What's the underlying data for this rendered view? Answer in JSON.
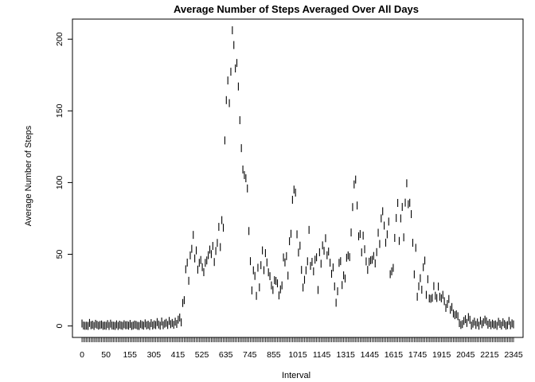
{
  "chart_data": {
    "type": "scatter",
    "title": "Average Number of Steps Averaged Over All Days",
    "xlabel": "Interval",
    "ylabel": "Average Number of Steps",
    "y_ticks": [
      0,
      50,
      100,
      150,
      200
    ],
    "ylim": [
      -8,
      214
    ],
    "grid": false,
    "legend": "none",
    "point_style": "vertical-bar",
    "color": "#000000",
    "x_tick_labels": [
      "0",
      "50",
      "155",
      "305",
      "415",
      "525",
      "635",
      "745",
      "855",
      "1015",
      "1145",
      "1315",
      "1445",
      "1615",
      "1745",
      "1915",
      "2045",
      "2215",
      "2345"
    ],
    "x_interval_labels_all": [],
    "points": [
      [
        0,
        1.7
      ],
      [
        1,
        0.3
      ],
      [
        2,
        0.1
      ],
      [
        3,
        0.2
      ],
      [
        4,
        0.0
      ],
      [
        5,
        2.1
      ],
      [
        6,
        0.5
      ],
      [
        7,
        0.9
      ],
      [
        8,
        0.0
      ],
      [
        9,
        1.5
      ],
      [
        10,
        0.8
      ],
      [
        11,
        0.2
      ],
      [
        12,
        0.7
      ],
      [
        13,
        1.0
      ],
      [
        14,
        0.1
      ],
      [
        15,
        0.3
      ],
      [
        16,
        0.1
      ],
      [
        17,
        1.3
      ],
      [
        18,
        0.0
      ],
      [
        19,
        1.6
      ],
      [
        20,
        0.3
      ],
      [
        21,
        0.2
      ],
      [
        22,
        0.0
      ],
      [
        23,
        1.1
      ],
      [
        24,
        0.0
      ],
      [
        25,
        0.9
      ],
      [
        26,
        0.4
      ],
      [
        27,
        0.1
      ],
      [
        28,
        1.2
      ],
      [
        29,
        0.5
      ],
      [
        30,
        0.6
      ],
      [
        31,
        0.2
      ],
      [
        32,
        1.4
      ],
      [
        33,
        0.0
      ],
      [
        34,
        0.3
      ],
      [
        35,
        1.0
      ],
      [
        36,
        0.7
      ],
      [
        37,
        0.1
      ],
      [
        38,
        0.0
      ],
      [
        39,
        1.3
      ],
      [
        40,
        0.6
      ],
      [
        41,
        0.2
      ],
      [
        42,
        1.8
      ],
      [
        43,
        0.4
      ],
      [
        44,
        0.9
      ],
      [
        45,
        0.0
      ],
      [
        46,
        2.0
      ],
      [
        47,
        0.3
      ],
      [
        48,
        1.1
      ],
      [
        49,
        0.6
      ],
      [
        50,
        2.7
      ],
      [
        51,
        1.0
      ],
      [
        52,
        0.2
      ],
      [
        53,
        3.1
      ],
      [
        54,
        0.5
      ],
      [
        55,
        1.6
      ],
      [
        56,
        2.2
      ],
      [
        57,
        0.7
      ],
      [
        58,
        3.5
      ],
      [
        59,
        1.2
      ],
      [
        60,
        2.1
      ],
      [
        61,
        0.8
      ],
      [
        62,
        3.0
      ],
      [
        63,
        1.4
      ],
      [
        64,
        4.4
      ],
      [
        65,
        5.9
      ],
      [
        66,
        2.5
      ],
      [
        67,
        16.0
      ],
      [
        68,
        18.0
      ],
      [
        69,
        39.5
      ],
      [
        70,
        44.2
      ],
      [
        71,
        31.5
      ],
      [
        72,
        49.2
      ],
      [
        73,
        53.8
      ],
      [
        74,
        63.5
      ],
      [
        75,
        47.1
      ],
      [
        76,
        52.7
      ],
      [
        77,
        39.3
      ],
      [
        78,
        44.0
      ],
      [
        79,
        46.0
      ],
      [
        80,
        41.0
      ],
      [
        81,
        37.5
      ],
      [
        82,
        44.0
      ],
      [
        83,
        45.7
      ],
      [
        84,
        49.4
      ],
      [
        85,
        53.3
      ],
      [
        86,
        50.1
      ],
      [
        87,
        55.8
      ],
      [
        88,
        44.6
      ],
      [
        89,
        52.3
      ],
      [
        90,
        57.9
      ],
      [
        91,
        69.1
      ],
      [
        92,
        55.0
      ],
      [
        93,
        73.8
      ],
      [
        94,
        68.5
      ],
      [
        95,
        129.4
      ],
      [
        96,
        157.5
      ],
      [
        97,
        171.2
      ],
      [
        98,
        155.4
      ],
      [
        99,
        177.3
      ],
      [
        100,
        206.2
      ],
      [
        101,
        195.9
      ],
      [
        102,
        179.6
      ],
      [
        103,
        183.4
      ],
      [
        104,
        167.0
      ],
      [
        105,
        143.5
      ],
      [
        106,
        124.0
      ],
      [
        107,
        109.1
      ],
      [
        108,
        105.2
      ],
      [
        109,
        103.0
      ],
      [
        110,
        95.9
      ],
      [
        111,
        66.2
      ],
      [
        112,
        45.2
      ],
      [
        113,
        24.8
      ],
      [
        114,
        38.8
      ],
      [
        115,
        34.9
      ],
      [
        116,
        21.0
      ],
      [
        117,
        40.6
      ],
      [
        118,
        26.9
      ],
      [
        119,
        42.4
      ],
      [
        120,
        52.7
      ],
      [
        121,
        38.9
      ],
      [
        122,
        50.8
      ],
      [
        123,
        44.3
      ],
      [
        124,
        37.4
      ],
      [
        125,
        34.7
      ],
      [
        126,
        28.3
      ],
      [
        127,
        25.1
      ],
      [
        128,
        31.9
      ],
      [
        129,
        31.4
      ],
      [
        130,
        29.7
      ],
      [
        131,
        21.3
      ],
      [
        132,
        25.5
      ],
      [
        133,
        28.3
      ],
      [
        134,
        47.8
      ],
      [
        135,
        44.3
      ],
      [
        136,
        48.7
      ],
      [
        137,
        35.1
      ],
      [
        138,
        59.1
      ],
      [
        139,
        64.3
      ],
      [
        140,
        88.0
      ],
      [
        141,
        95.1
      ],
      [
        142,
        93.0
      ],
      [
        143,
        63.9
      ],
      [
        144,
        51.2
      ],
      [
        145,
        56.0
      ],
      [
        146,
        39.1
      ],
      [
        147,
        26.8
      ],
      [
        148,
        32.2
      ],
      [
        149,
        38.8
      ],
      [
        150,
        45.1
      ],
      [
        151,
        67.0
      ],
      [
        152,
        41.9
      ],
      [
        153,
        44.7
      ],
      [
        154,
        38.1
      ],
      [
        155,
        46.2
      ],
      [
        156,
        47.9
      ],
      [
        157,
        25.1
      ],
      [
        158,
        51.4
      ],
      [
        159,
        43.4
      ],
      [
        160,
        56.2
      ],
      [
        161,
        52.4
      ],
      [
        162,
        61.2
      ],
      [
        163,
        49.3
      ],
      [
        164,
        51.9
      ],
      [
        165,
        44.1
      ],
      [
        166,
        36.4
      ],
      [
        167,
        40.8
      ],
      [
        168,
        27.6
      ],
      [
        169,
        16.2
      ],
      [
        170,
        24.2
      ],
      [
        171,
        44.0
      ],
      [
        172,
        45.2
      ],
      [
        173,
        28.5
      ],
      [
        174,
        35.3
      ],
      [
        175,
        33.1
      ],
      [
        176,
        47.6
      ],
      [
        177,
        49.2
      ],
      [
        178,
        48.0
      ],
      [
        179,
        65.2
      ],
      [
        180,
        82.9
      ],
      [
        181,
        98.7
      ],
      [
        182,
        102.1
      ],
      [
        183,
        84.0
      ],
      [
        184,
        62.5
      ],
      [
        185,
        64.1
      ],
      [
        186,
        51.3
      ],
      [
        187,
        63.0
      ],
      [
        188,
        53.5
      ],
      [
        189,
        45.0
      ],
      [
        190,
        39.1
      ],
      [
        191,
        44.8
      ],
      [
        192,
        45.8
      ],
      [
        193,
        46.2
      ],
      [
        194,
        48.8
      ],
      [
        195,
        43.6
      ],
      [
        196,
        51.5
      ],
      [
        197,
        65.0
      ],
      [
        198,
        57.2
      ],
      [
        199,
        75.0
      ],
      [
        200,
        80.0
      ],
      [
        201,
        70.0
      ],
      [
        202,
        58.1
      ],
      [
        203,
        63.9
      ],
      [
        204,
        72.8
      ],
      [
        205,
        36.1
      ],
      [
        206,
        38.1
      ],
      [
        207,
        40.5
      ],
      [
        208,
        61.4
      ],
      [
        209,
        75.3
      ],
      [
        210,
        85.8
      ],
      [
        211,
        59.3
      ],
      [
        212,
        75.0
      ],
      [
        213,
        83.0
      ],
      [
        214,
        61.8
      ],
      [
        215,
        86.0
      ],
      [
        216,
        99.5
      ],
      [
        217,
        84.9
      ],
      [
        218,
        85.9
      ],
      [
        219,
        78.0
      ],
      [
        220,
        58.0
      ],
      [
        221,
        36.0
      ],
      [
        222,
        54.5
      ],
      [
        223,
        20.4
      ],
      [
        224,
        27.7
      ],
      [
        225,
        33.3
      ],
      [
        226,
        25.3
      ],
      [
        227,
        41.0
      ],
      [
        228,
        45.6
      ],
      [
        229,
        21.7
      ],
      [
        230,
        32.6
      ],
      [
        231,
        19.2
      ],
      [
        232,
        18.9
      ],
      [
        233,
        19.6
      ],
      [
        234,
        27.8
      ],
      [
        235,
        21.1
      ],
      [
        236,
        19.5
      ],
      [
        237,
        27.5
      ],
      [
        238,
        20.4
      ],
      [
        239,
        19.3
      ],
      [
        240,
        21.7
      ],
      [
        241,
        17.3
      ],
      [
        242,
        12.6
      ],
      [
        243,
        15.3
      ],
      [
        244,
        18.8
      ],
      [
        245,
        11.3
      ],
      [
        246,
        13.2
      ],
      [
        247,
        8.7
      ],
      [
        248,
        7.5
      ],
      [
        249,
        8.1
      ],
      [
        250,
        6.8
      ],
      [
        251,
        2.0
      ],
      [
        252,
        0.7
      ],
      [
        253,
        1.3
      ],
      [
        254,
        3.5
      ],
      [
        255,
        4.7
      ],
      [
        256,
        2.1
      ],
      [
        257,
        6.2
      ],
      [
        258,
        4.3
      ],
      [
        259,
        0.3
      ],
      [
        260,
        1.6
      ],
      [
        261,
        3.0
      ],
      [
        262,
        0.7
      ],
      [
        263,
        2.4
      ],
      [
        264,
        0.2
      ],
      [
        265,
        3.7
      ],
      [
        266,
        1.2
      ],
      [
        267,
        2.6
      ],
      [
        268,
        4.4
      ],
      [
        269,
        3.2
      ],
      [
        270,
        0.9
      ],
      [
        271,
        2.0
      ],
      [
        272,
        0.5
      ],
      [
        273,
        1.6
      ],
      [
        274,
        0.7
      ],
      [
        275,
        1.1
      ],
      [
        276,
        0.1
      ],
      [
        277,
        2.9
      ],
      [
        278,
        1.4
      ],
      [
        279,
        0.3
      ],
      [
        280,
        2.6
      ],
      [
        281,
        1.3
      ],
      [
        282,
        0.2
      ],
      [
        283,
        0.6
      ],
      [
        284,
        3.5
      ],
      [
        285,
        0.5
      ],
      [
        286,
        1.8
      ],
      [
        287,
        1.1
      ]
    ]
  }
}
